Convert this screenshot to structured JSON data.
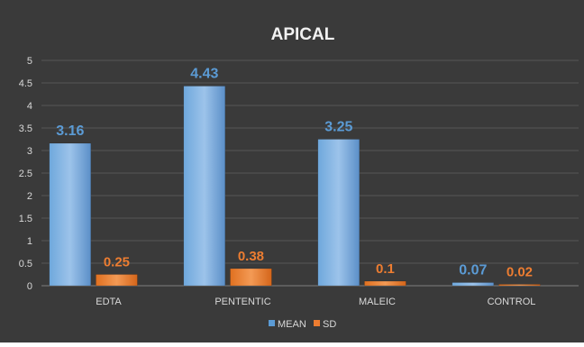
{
  "chart_data": {
    "type": "bar",
    "title": "APICAL",
    "categories": [
      "EDTA",
      "PENTENTIC",
      "MALEIC",
      "CONTROL"
    ],
    "series": [
      {
        "name": "MEAN",
        "values": [
          3.16,
          4.43,
          3.25,
          0.07
        ],
        "labels": [
          "3.16",
          "4.43",
          "3.25",
          "0.07"
        ],
        "color": "#5b9bd5"
      },
      {
        "name": "SD",
        "values": [
          0.25,
          0.38,
          0.1,
          0.02
        ],
        "labels": [
          "0.25",
          "0.38",
          "0.1",
          "0.02"
        ],
        "color": "#ed7d31"
      }
    ],
    "ylim": [
      0,
      5
    ],
    "y_ticks": [
      "0",
      "0.5",
      "1",
      "1.5",
      "2",
      "2.5",
      "3",
      "3.5",
      "4",
      "4.5",
      "5"
    ],
    "grid": true,
    "legend_position": "bottom",
    "colors": {
      "background": "#3a3a3a",
      "grid": "#555555",
      "text": "#d9d9d9",
      "title": "#f2f2f2"
    }
  }
}
